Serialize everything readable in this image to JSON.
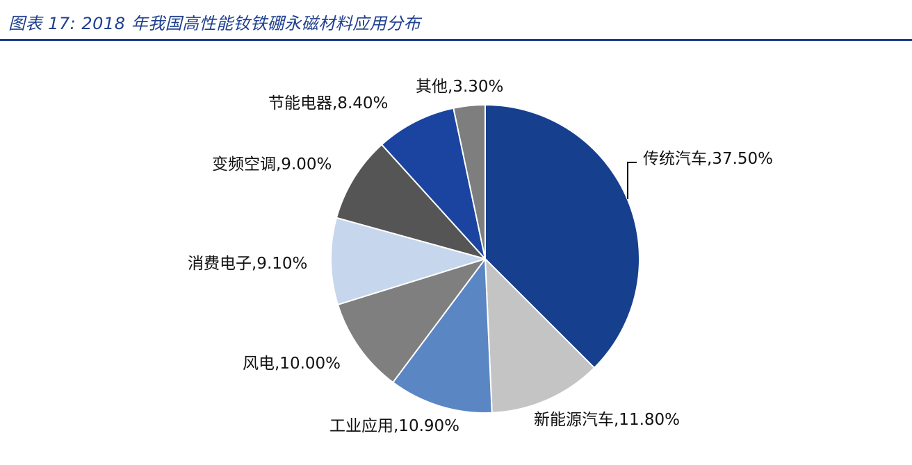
{
  "title": "图表 17:  2018 年我国高性能钕铁硼永磁材料应用分布",
  "chart_data": {
    "type": "pie",
    "title": "图表 17:  2018 年我国高性能钕铁硼永磁材料应用分布",
    "slices": [
      {
        "label": "传统汽车",
        "value": 37.5,
        "text": "传统汽车,37.50%",
        "color": "#163f8e"
      },
      {
        "label": "新能源汽车",
        "value": 11.8,
        "text": "新能源汽车,11.80%",
        "color": "#c4c4c4"
      },
      {
        "label": "工业应用",
        "value": 10.9,
        "text": "工业应用,10.90%",
        "color": "#5a86c4"
      },
      {
        "label": "风电",
        "value": 10.0,
        "text": "风电,10.00%",
        "color": "#7f7f7f"
      },
      {
        "label": "消费电子",
        "value": 9.1,
        "text": "消费电子,9.10%",
        "color": "#c6d6ec"
      },
      {
        "label": "变频空调",
        "value": 9.0,
        "text": "变频空调,9.00%",
        "color": "#555555"
      },
      {
        "label": "节能电器",
        "value": 8.4,
        "text": "节能电器,8.40%",
        "color": "#1b44a0"
      },
      {
        "label": "其他",
        "value": 3.3,
        "text": "其他,3.30%",
        "color": "#7e7e7e"
      }
    ]
  }
}
